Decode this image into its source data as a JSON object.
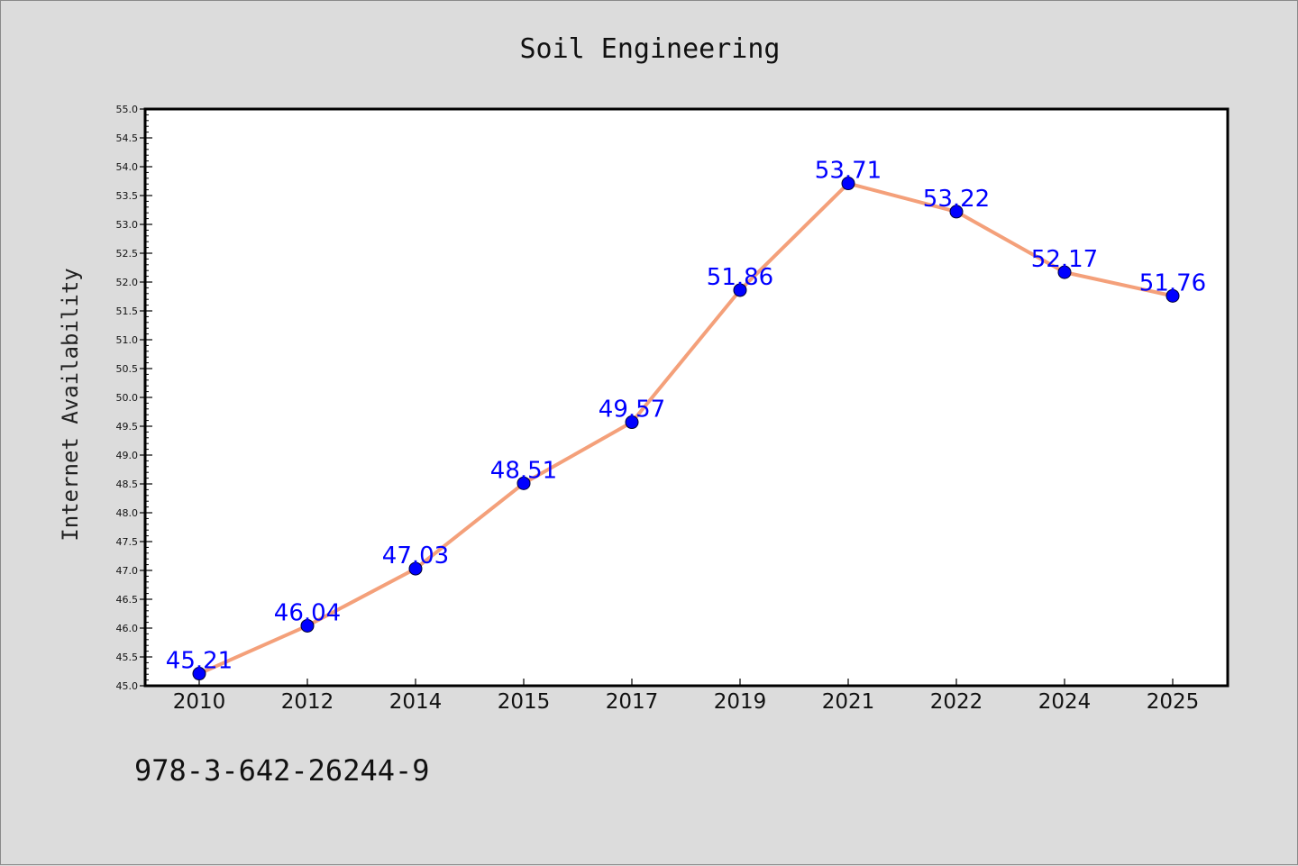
{
  "chart_data": {
    "type": "line",
    "title": "Soil Engineering",
    "xlabel": "",
    "ylabel": "Internet Availability",
    "categories": [
      "2010",
      "2012",
      "2014",
      "2015",
      "2017",
      "2019",
      "2021",
      "2022",
      "2024",
      "2025"
    ],
    "series": [
      {
        "values": [
          45.21,
          46.04,
          47.03,
          48.51,
          49.57,
          51.86,
          53.71,
          53.22,
          52.17,
          51.76
        ],
        "data_labels": [
          "45.21",
          "46.04",
          "47.03",
          "48.51",
          "49.57",
          "51.86",
          "53.71",
          "53.22",
          "52.17",
          "51.76"
        ]
      }
    ],
    "ylim": [
      45.0,
      55.0
    ],
    "ytick_labels": [
      "45.0",
      "45.5",
      "46.0",
      "46.5",
      "47.0",
      "47.5",
      "48.0",
      "48.5",
      "49.0",
      "49.5",
      "50.0",
      "50.5",
      "51.0",
      "51.5",
      "52.0",
      "52.5",
      "53.0",
      "53.5",
      "54.0",
      "54.5",
      "55.0"
    ],
    "grid": false,
    "legend": "none",
    "colors": {
      "line": "#f4a07a",
      "marker": "#0000ff",
      "data_label": "#0000ff",
      "plot_background": "#ffffff",
      "figure_background": "#dcdcdc"
    }
  },
  "footnote": "978-3-642-26244-9"
}
